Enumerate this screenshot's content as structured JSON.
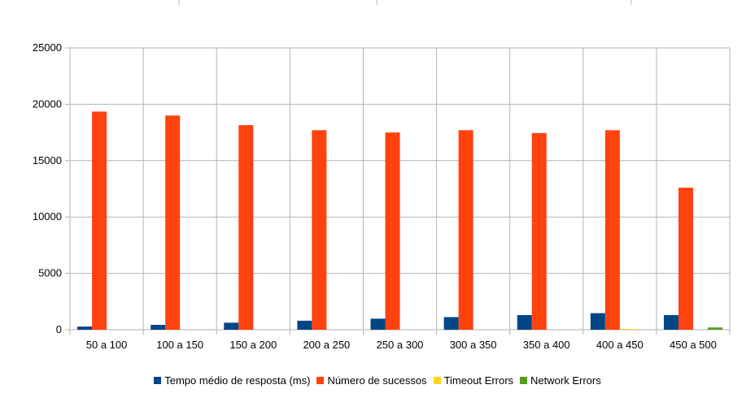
{
  "chart_data": {
    "type": "bar",
    "title": "",
    "xlabel": "",
    "ylabel": "",
    "ylim": [
      0,
      25000
    ],
    "yticks": [
      0,
      5000,
      10000,
      15000,
      20000,
      25000
    ],
    "grid": true,
    "legend_position": "bottom",
    "categories": [
      "50 a 100",
      "100 a 150",
      "150 a 200",
      "200 a 250",
      "250 a 300",
      "300 a 350",
      "350 a 400",
      "400 a 450",
      "450 a 500"
    ],
    "series": [
      {
        "name": "Tempo médio de resposta (ms)",
        "color": "#004586",
        "values": [
          280,
          430,
          620,
          800,
          980,
          1120,
          1300,
          1470,
          1300
        ]
      },
      {
        "name": "Número de sucessos",
        "color": "#ff420e",
        "values": [
          19350,
          19000,
          18150,
          17700,
          17500,
          17700,
          17450,
          17700,
          12600
        ]
      },
      {
        "name": "Timeout Errors",
        "color": "#ffd320",
        "values": [
          0,
          0,
          0,
          0,
          0,
          0,
          0,
          30,
          0
        ]
      },
      {
        "name": "Network Errors",
        "color": "#579d1c",
        "values": [
          0,
          0,
          0,
          0,
          0,
          0,
          0,
          0,
          200
        ]
      }
    ]
  }
}
